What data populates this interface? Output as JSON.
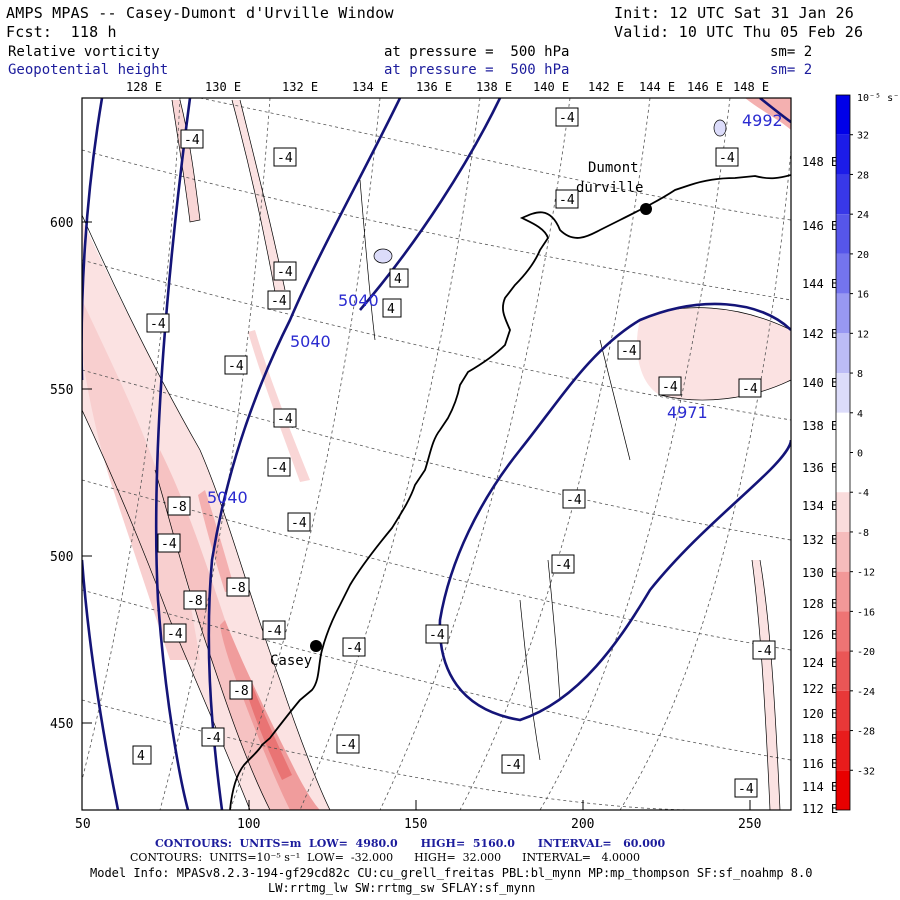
{
  "header": {
    "title": "AMPS MPAS -- Casey-Dumont d'Urville Window",
    "init": "Init: 12 UTC Sat 31 Jan 26",
    "fcst": "Fcst:  118 h",
    "valid": "Valid: 10 UTC Thu 05 Feb 26",
    "field1_name": "Relative vorticity",
    "field1_level": "at pressure =  500 hPa",
    "field1_sm": "sm= 2",
    "field2_name": "Geopotential height",
    "field2_level": "at pressure =  500 hPa",
    "field2_sm": "sm= 2"
  },
  "axes": {
    "x_ticks": [
      "50",
      "100",
      "150",
      "200",
      "250"
    ],
    "y_ticks": [
      "450",
      "500",
      "550",
      "600"
    ],
    "top_lon": [
      "128 E",
      "130 E",
      "132 E",
      "134 E",
      "136 E",
      "138 E",
      "140 E",
      "142 E",
      "144 E",
      "146 E",
      "148 E"
    ],
    "right_lon": [
      "148 E",
      "146 E",
      "144 E",
      "142 E",
      "140 E",
      "138 E",
      "136 E",
      "134 E",
      "132 E",
      "130 E",
      "128 E",
      "126 E",
      "124 E",
      "122 E",
      "120 E",
      "118 E",
      "116 E",
      "114 E",
      "112 E"
    ]
  },
  "stations": [
    {
      "name_line1": "Dumont",
      "name_line2": "durville"
    },
    {
      "name_line1": "Casey"
    }
  ],
  "height_labels": [
    "5040",
    "5040",
    "5040",
    "4971",
    "4992"
  ],
  "vort_labels": [
    "-4",
    "-8"
  ],
  "colorbar": {
    "unit_label": "10⁻⁵ s⁻¹",
    "levels": [
      "32",
      "28",
      "24",
      "20",
      "16",
      "12",
      "8",
      "4",
      "0",
      "-4",
      "-8",
      "-12",
      "-16",
      "-20",
      "-24",
      "-28",
      "-32"
    ],
    "colors": [
      "#0000e8",
      "#1c1ce8",
      "#3838e8",
      "#5656ea",
      "#7474ee",
      "#9898f2",
      "#bcbcf6",
      "#dcdcfa",
      "#ffffff",
      "#ffffff",
      "#fadcdc",
      "#f6bcbc",
      "#f29898",
      "#ee7474",
      "#ea5656",
      "#e83838",
      "#e81c1c",
      "#e80000"
    ]
  },
  "footer": {
    "line1_label": "CONTOURS:  UNITS=m  LOW=  4980.0      HIGH=  5160.0      INTERVAL=   60.000",
    "line2_label": "CONTOURS:  UNITS=10⁻⁵ s⁻¹  LOW=  -32.000      HIGH=  32.000      INTERVAL=   4.0000",
    "line3": "Model Info: MPASv8.2.3-194-gf29cd82c CU:cu_grell_freitas PBL:bl_mynn MP:mp_thompson SF:sf_noahmp 8.0",
    "line4": "LW:rrtmg_lw SW:rrtmg_sw SFLAY:sf_mynn"
  }
}
